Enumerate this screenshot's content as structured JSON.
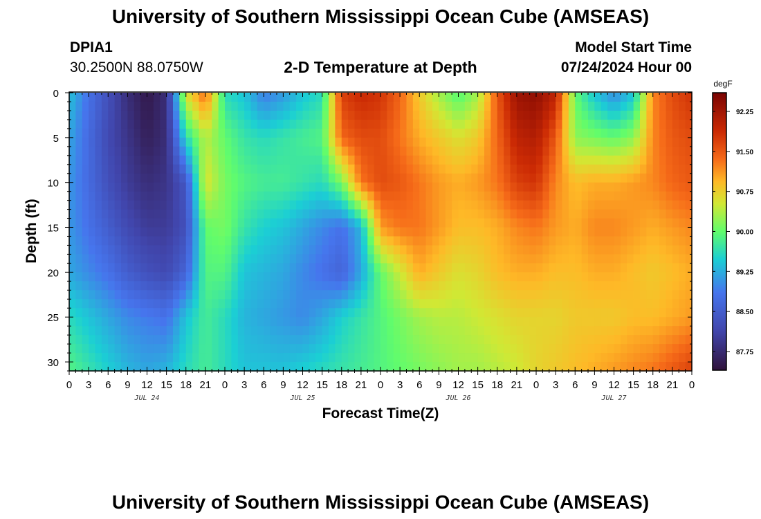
{
  "header": {
    "title_top": "University of Southern Mississippi Ocean Cube (AMSEAS)",
    "station": "DPIA1",
    "coords": "30.2500N  88.0750W",
    "plot_title": "2-D Temperature at Depth",
    "model_start_label": "Model Start Time",
    "model_start_value": "07/24/2024 Hour 00",
    "title_bottom": "University of Southern Mississippi Ocean Cube (AMSEAS)"
  },
  "chart_data": {
    "type": "heatmap",
    "title": "2-D Temperature at Depth",
    "xlabel": "Forecast Time(Z)",
    "ylabel": "Depth (ft)",
    "x_tick_labels": [
      "0",
      "3",
      "6",
      "9",
      "12",
      "15",
      "18",
      "21",
      "0",
      "3",
      "6",
      "9",
      "12",
      "15",
      "18",
      "21",
      "0",
      "3",
      "6",
      "9",
      "12",
      "15",
      "18",
      "21",
      "0",
      "3",
      "6",
      "9",
      "12",
      "15",
      "18",
      "21",
      "0"
    ],
    "x_range_hours": [
      0,
      96
    ],
    "date_labels": [
      {
        "label": "JUL 24",
        "hour": 12
      },
      {
        "label": "JUL 25",
        "hour": 36
      },
      {
        "label": "JUL 26",
        "hour": 60
      },
      {
        "label": "JUL 27",
        "hour": 84
      }
    ],
    "y_ticks": [
      0,
      5,
      10,
      15,
      20,
      25,
      30
    ],
    "y_tick_labels": [
      "0",
      "5",
      "10",
      "15",
      "20",
      "25",
      "30"
    ],
    "ylim": [
      0,
      31
    ],
    "colorbar": {
      "unit": "degF",
      "min": 87.4,
      "max": 92.6,
      "tick_values": [
        92.25,
        91.5,
        90.75,
        90.0,
        89.25,
        88.5,
        87.75
      ],
      "tick_labels": [
        "92.25",
        "91.50",
        "90.75",
        "90.00",
        "89.25",
        "88.50",
        "87.75"
      ]
    },
    "grid_hours": [
      0,
      3,
      6,
      9,
      12,
      15,
      18,
      21,
      24,
      27,
      30,
      33,
      36,
      39,
      42,
      45,
      48,
      51,
      54,
      57,
      60,
      63,
      66,
      69,
      72,
      75,
      78,
      81,
      84,
      87,
      90,
      93,
      96
    ],
    "grid_depths": [
      0,
      5,
      10,
      15,
      20,
      25,
      31
    ],
    "values": [
      [
        89.4,
        88.8,
        88.3,
        87.8,
        87.5,
        87.8,
        90.6,
        91.4,
        89.6,
        89.4,
        88.9,
        89.1,
        89.4,
        89.6,
        91.7,
        91.9,
        91.8,
        91.4,
        90.8,
        90.3,
        89.9,
        90.3,
        91.5,
        92.3,
        92.4,
        92.0,
        90.0,
        89.4,
        89.0,
        89.4,
        91.2,
        91.6,
        91.8
      ],
      [
        89.2,
        88.7,
        88.2,
        87.9,
        87.6,
        87.8,
        89.6,
        90.4,
        90.0,
        89.7,
        89.6,
        89.7,
        89.8,
        89.9,
        91.4,
        91.6,
        91.6,
        91.3,
        91.0,
        90.8,
        90.6,
        90.8,
        91.4,
        92.0,
        92.1,
        91.5,
        90.2,
        90.1,
        90.0,
        90.2,
        91.2,
        91.5,
        91.6
      ],
      [
        89.1,
        88.7,
        88.3,
        88.0,
        87.8,
        87.9,
        88.4,
        90.6,
        90.1,
        89.9,
        89.8,
        89.8,
        89.7,
        89.6,
        90.1,
        91.3,
        91.6,
        91.5,
        91.3,
        91.1,
        91.0,
        91.1,
        91.3,
        91.7,
        91.8,
        91.2,
        90.9,
        91.0,
        91.0,
        91.1,
        91.2,
        91.4,
        91.5
      ],
      [
        89.1,
        88.8,
        88.5,
        88.2,
        88.0,
        88.0,
        88.3,
        90.0,
        90.1,
        89.7,
        89.5,
        89.4,
        89.2,
        89.0,
        88.8,
        89.3,
        91.1,
        91.3,
        91.3,
        91.1,
        90.9,
        90.9,
        91.0,
        91.2,
        91.3,
        91.1,
        91.0,
        91.2,
        91.2,
        91.1,
        91.0,
        91.1,
        91.2
      ],
      [
        89.2,
        89.0,
        88.8,
        88.5,
        88.3,
        88.2,
        88.6,
        89.9,
        89.9,
        89.4,
        89.3,
        89.2,
        89.0,
        88.8,
        88.6,
        89.2,
        90.0,
        90.5,
        91.0,
        90.8,
        90.6,
        90.7,
        90.9,
        91.0,
        91.0,
        90.9,
        90.9,
        91.0,
        91.0,
        90.9,
        90.8,
        90.9,
        91.0
      ],
      [
        89.6,
        89.4,
        89.2,
        89.0,
        88.9,
        88.8,
        89.4,
        89.8,
        89.6,
        89.3,
        89.2,
        89.1,
        89.0,
        89.2,
        89.5,
        89.7,
        89.9,
        90.1,
        90.3,
        90.4,
        90.4,
        90.5,
        90.6,
        90.7,
        90.7,
        90.7,
        90.8,
        90.8,
        90.8,
        90.9,
        90.9,
        91.0,
        91.1
      ],
      [
        89.9,
        89.7,
        89.5,
        89.3,
        89.2,
        89.3,
        89.6,
        89.8,
        89.6,
        89.4,
        89.4,
        89.4,
        89.5,
        89.6,
        89.7,
        89.8,
        89.9,
        90.0,
        90.1,
        90.2,
        90.3,
        90.3,
        90.4,
        90.5,
        90.7,
        90.8,
        90.9,
        91.0,
        91.1,
        91.2,
        91.3,
        91.5,
        91.7
      ]
    ]
  }
}
